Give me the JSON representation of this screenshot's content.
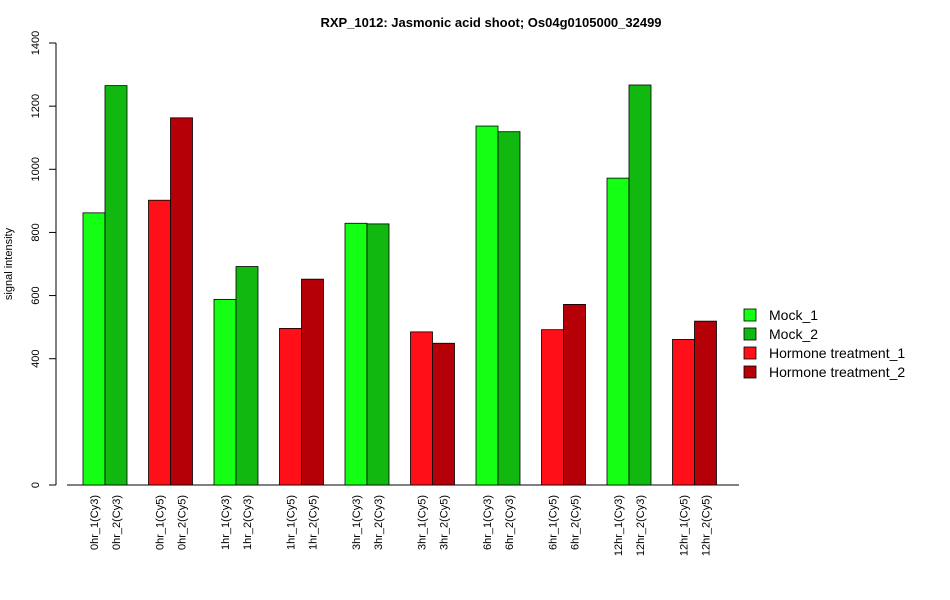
{
  "chart_data": {
    "type": "bar",
    "title": "RXP_1012: Jasmonic acid shoot; Os04g0105000_32499",
    "xlabel": "",
    "ylabel": "signal intensity",
    "ylim": [
      0,
      1400
    ],
    "yticks": [
      0,
      400,
      600,
      800,
      1000,
      1200,
      1400
    ],
    "grid": false,
    "legend_position": "right",
    "series": [
      {
        "name": "Mock_1",
        "color": "#14FF14"
      },
      {
        "name": "Mock_2",
        "color": "#10B810"
      },
      {
        "name": "Hormone treatment_1",
        "color": "#FF0F17"
      },
      {
        "name": "Hormone treatment_2",
        "color": "#B40006"
      }
    ],
    "groups": [
      {
        "bars": [
          {
            "label": "0hr_1(Cy3)",
            "value": 862,
            "series": 0
          },
          {
            "label": "0hr_2(Cy3)",
            "value": 1265,
            "series": 1
          }
        ]
      },
      {
        "bars": [
          {
            "label": "0hr_1(Cy5)",
            "value": 902,
            "series": 2
          },
          {
            "label": "0hr_2(Cy5)",
            "value": 1163,
            "series": 3
          }
        ]
      },
      {
        "bars": [
          {
            "label": "1hr_1(Cy3)",
            "value": 588,
            "series": 0
          },
          {
            "label": "1hr_2(Cy3)",
            "value": 692,
            "series": 1
          }
        ]
      },
      {
        "bars": [
          {
            "label": "1hr_1(Cy5)",
            "value": 496,
            "series": 2
          },
          {
            "label": "1hr_2(Cy5)",
            "value": 652,
            "series": 3
          }
        ]
      },
      {
        "bars": [
          {
            "label": "3hr_1(Cy3)",
            "value": 829,
            "series": 0
          },
          {
            "label": "3hr_2(Cy3)",
            "value": 827,
            "series": 1
          }
        ]
      },
      {
        "bars": [
          {
            "label": "3hr_1(Cy5)",
            "value": 485,
            "series": 2
          },
          {
            "label": "3hr_2(Cy5)",
            "value": 449,
            "series": 3
          }
        ]
      },
      {
        "bars": [
          {
            "label": "6hr_1(Cy3)",
            "value": 1137,
            "series": 0
          },
          {
            "label": "6hr_2(Cy3)",
            "value": 1119,
            "series": 1
          }
        ]
      },
      {
        "bars": [
          {
            "label": "6hr_1(Cy5)",
            "value": 492,
            "series": 2
          },
          {
            "label": "6hr_2(Cy5)",
            "value": 572,
            "series": 3
          }
        ]
      },
      {
        "bars": [
          {
            "label": "12hr_1(Cy3)",
            "value": 972,
            "series": 0
          },
          {
            "label": "12hr_2(Cy3)",
            "value": 1267,
            "series": 1
          }
        ]
      },
      {
        "bars": [
          {
            "label": "12hr_1(Cy5)",
            "value": 461,
            "series": 2
          },
          {
            "label": "12hr_2(Cy5)",
            "value": 519,
            "series": 3
          }
        ]
      }
    ]
  }
}
